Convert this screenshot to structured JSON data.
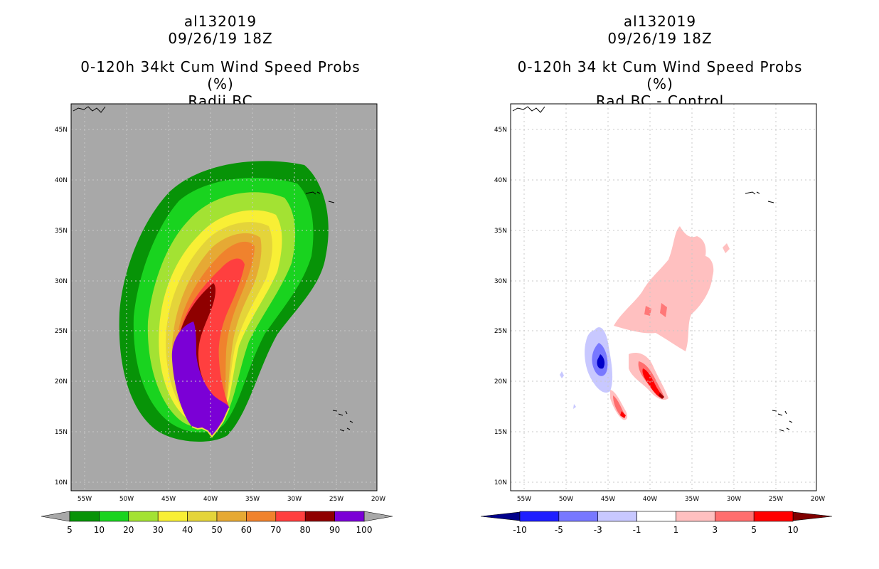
{
  "panels": [
    {
      "storm_id": "al132019",
      "datetime": "09/26/19 18Z",
      "product": "0-120h 34kt Cum Wind Speed Probs (%)",
      "subtitle": "Radii BC",
      "colorbar": {
        "labels": [
          "5",
          "10",
          "20",
          "30",
          "40",
          "50",
          "60",
          "70",
          "80",
          "90",
          "100"
        ],
        "colors": [
          "#079307",
          "#19d31f",
          "#a3e233",
          "#f8ef35",
          "#e4d43a",
          "#e6a934",
          "#f0822d",
          "#ff3f3f",
          "#8f0000",
          "#7b00d6"
        ]
      }
    },
    {
      "storm_id": "al132019",
      "datetime": "09/26/19 18Z",
      "product": "0-120h 34 kt Cum Wind Speed Probs (%)",
      "subtitle": "Rad BC - Control",
      "colorbar": {
        "labels": [
          "-10",
          "-5",
          "-3",
          "-1",
          "1",
          "3",
          "5",
          "10"
        ],
        "colors": [
          "#0000c8",
          "#1e1eff",
          "#7878ff",
          "#c8c8ff",
          "#ffffff",
          "#ffc0c0",
          "#ff6e6e",
          "#ff0000",
          "#a00000"
        ]
      }
    }
  ],
  "axes": {
    "lat_labels": [
      "45N",
      "40N",
      "35N",
      "30N",
      "25N",
      "20N",
      "15N",
      "10N"
    ],
    "lon_labels": [
      "55W",
      "50W",
      "45W",
      "40W",
      "35W",
      "30W",
      "25W",
      "20W"
    ]
  },
  "chart_data": [
    {
      "type": "heatmap",
      "title": "0-120h 34kt Cum Wind Speed Probs (%) - Radii BC",
      "units": "%",
      "xlim": [
        -57.3,
        -21.2
      ],
      "ylim": [
        9.2,
        47.5
      ],
      "levels": [
        5,
        10,
        20,
        30,
        40,
        50,
        60,
        70,
        80,
        90,
        100
      ],
      "max_probability_region": {
        "lon": [
          -43.5,
          -38.2
        ],
        "lat": [
          14.2,
          26.2
        ],
        "value_range": "90-100"
      },
      "outer_5pct_extent": {
        "lon": [
          -57.0,
          -28.5
        ],
        "lat": [
          14.2,
          42.0
        ]
      }
    },
    {
      "type": "heatmap",
      "title": "0-120h 34 kt Cum Wind Speed Probs (%) - Rad BC - Control",
      "units": "%",
      "xlim": [
        -57.3,
        -21.2
      ],
      "ylim": [
        9.2,
        47.5
      ],
      "levels": [
        -10,
        -5,
        -3,
        -1,
        1,
        3,
        5,
        10
      ],
      "features": [
        {
          "sign": "negative",
          "lon": -45.5,
          "lat": 21.5,
          "min": "-5 to -10"
        },
        {
          "sign": "positive",
          "lon": -39.5,
          "lat": 19.5,
          "max": "5 to 10"
        },
        {
          "sign": "positive",
          "lon": -43.5,
          "lat": 17.5,
          "max": "3 to 5"
        },
        {
          "sign": "positive",
          "lon": -38.5,
          "lat": 29.0,
          "max": "1 to 3"
        }
      ]
    }
  ]
}
